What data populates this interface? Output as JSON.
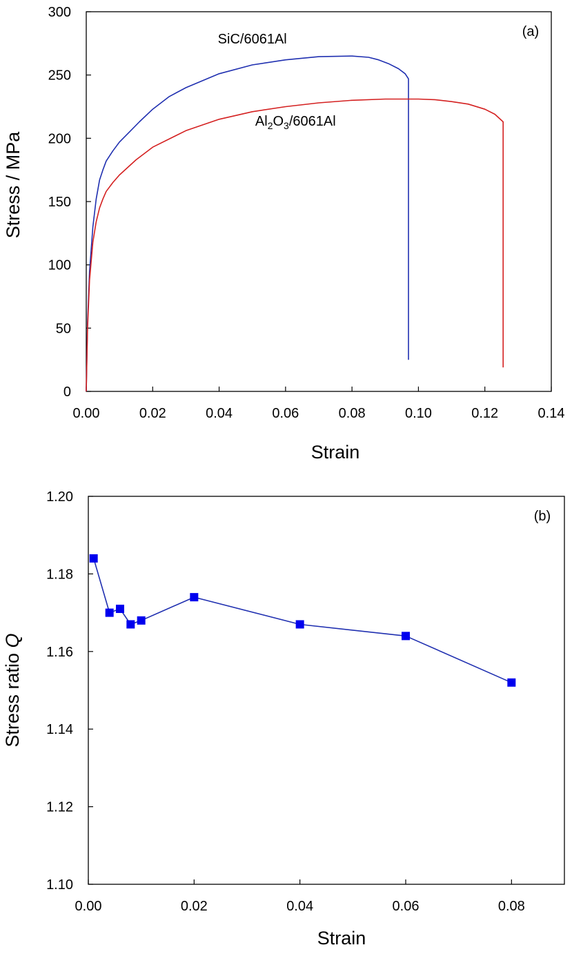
{
  "chart_data": [
    {
      "type": "line",
      "panel_label": "(a)",
      "xlabel": "Strain",
      "ylabel": "Stress / MPa",
      "xlim": [
        0,
        0.14
      ],
      "ylim": [
        0,
        300
      ],
      "xticks": [
        0,
        0.02,
        0.04,
        0.06,
        0.08,
        0.1,
        0.12,
        0.14
      ],
      "xtick_labels": [
        "0.00",
        "0.02",
        "0.04",
        "0.06",
        "0.08",
        "0.10",
        "0.12",
        "0.14"
      ],
      "yticks": [
        0,
        50,
        100,
        150,
        200,
        250,
        300
      ],
      "ytick_labels": [
        "0",
        "50",
        "100",
        "150",
        "200",
        "250",
        "300"
      ],
      "grid": false,
      "series": [
        {
          "name": "SiC/6061Al",
          "color": "#1f2fb0",
          "x": [
            0,
            0.0004,
            0.001,
            0.002,
            0.003,
            0.004,
            0.005,
            0.006,
            0.008,
            0.01,
            0.013,
            0.016,
            0.02,
            0.025,
            0.03,
            0.04,
            0.05,
            0.06,
            0.07,
            0.08,
            0.085,
            0.088,
            0.091,
            0.094,
            0.096,
            0.097,
            0.097
          ],
          "y": [
            0,
            55,
            95,
            130,
            152,
            167,
            175,
            182,
            190,
            197,
            205,
            213,
            223,
            233,
            240,
            251,
            258,
            262,
            264.5,
            265,
            264,
            262,
            259,
            255,
            251,
            247,
            25
          ]
        },
        {
          "name": "Al2O3/6061Al",
          "color": "#d42020",
          "x": [
            0,
            0.0004,
            0.001,
            0.002,
            0.003,
            0.004,
            0.005,
            0.006,
            0.008,
            0.01,
            0.015,
            0.02,
            0.03,
            0.04,
            0.05,
            0.06,
            0.07,
            0.08,
            0.09,
            0.1,
            0.105,
            0.11,
            0.115,
            0.12,
            0.123,
            0.1255,
            0.1255
          ],
          "y": [
            0,
            50,
            88,
            118,
            134,
            145,
            152,
            158,
            165,
            171,
            183,
            193,
            206,
            215,
            221,
            225,
            228,
            230,
            231,
            231,
            230.5,
            229,
            227,
            223,
            219,
            213,
            19
          ]
        }
      ],
      "annotations": [
        {
          "label": "SiC/6061Al",
          "x": 0.05,
          "y": 275
        },
        {
          "label": "Al2O3/6061Al",
          "x": 0.063,
          "y": 210
        }
      ]
    },
    {
      "type": "line",
      "panel_label": "(b)",
      "xlabel": "Strain",
      "ylabel": "Stress ratio ",
      "ylabel_italic": "Q",
      "xlim": [
        0,
        0.09
      ],
      "ylim": [
        1.1,
        1.2
      ],
      "xticks": [
        0,
        0.02,
        0.04,
        0.06,
        0.08
      ],
      "xtick_labels": [
        "0.00",
        "0.02",
        "0.04",
        "0.06",
        "0.08"
      ],
      "yticks": [
        1.1,
        1.12,
        1.14,
        1.16,
        1.18,
        1.2
      ],
      "ytick_labels": [
        "1.10",
        "1.12",
        "1.14",
        "1.16",
        "1.18",
        "1.20"
      ],
      "grid": false,
      "series": [
        {
          "name": "Stress ratio Q",
          "color": "#1f2fb0",
          "marker_color": "#0000ee",
          "marker": "square",
          "x": [
            0.001,
            0.004,
            0.006,
            0.008,
            0.01,
            0.02,
            0.04,
            0.06,
            0.08
          ],
          "y": [
            1.184,
            1.17,
            1.171,
            1.167,
            1.168,
            1.174,
            1.167,
            1.164,
            1.152
          ]
        }
      ]
    }
  ]
}
